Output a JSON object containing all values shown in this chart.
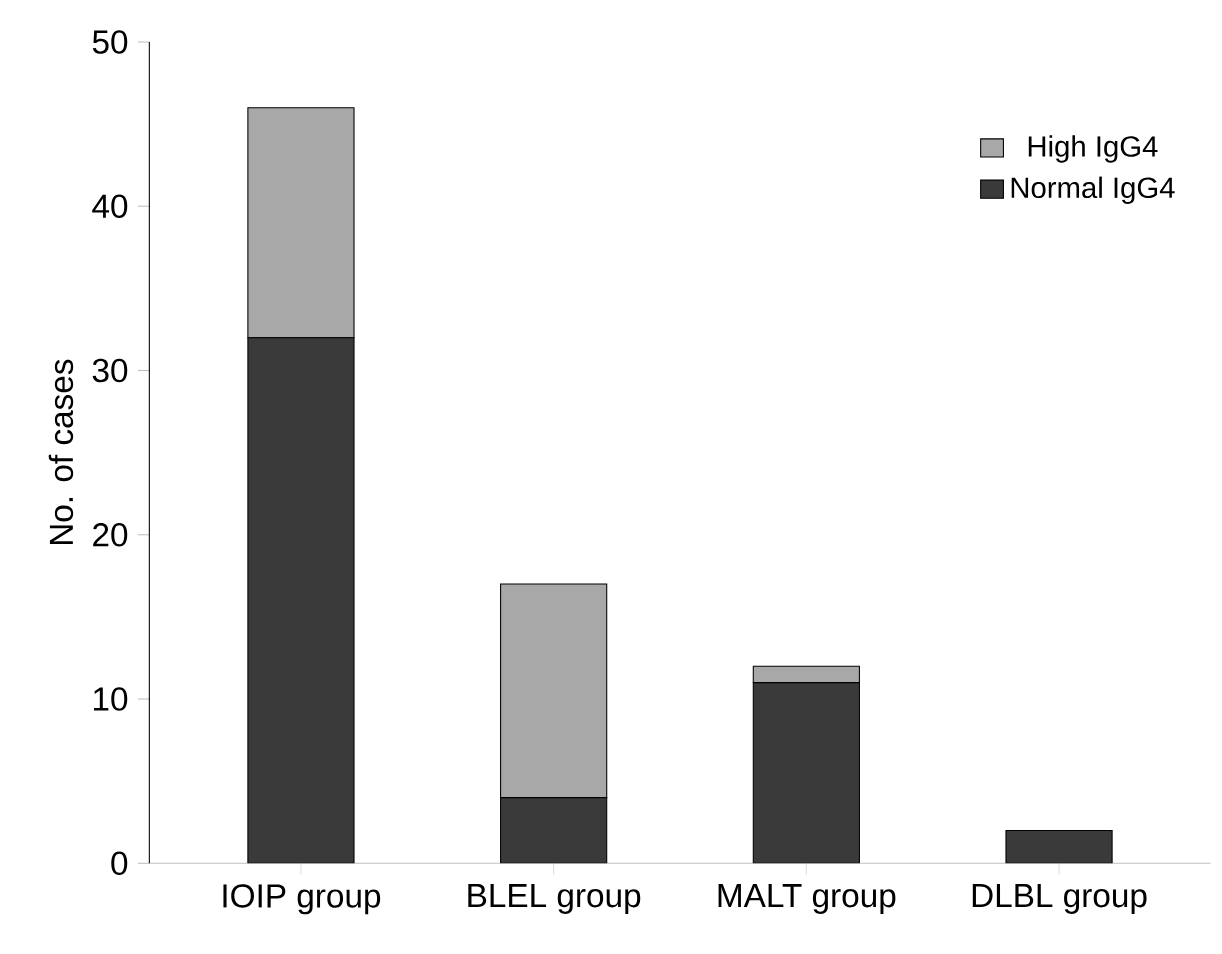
{
  "chart_data": {
    "type": "bar",
    "stacked": true,
    "ylabel": "No. of cases",
    "categories": [
      "IOIP group",
      "BLEL group",
      "MALT group",
      "DLBL group"
    ],
    "series": [
      {
        "name": "Normal IgG4",
        "color": "#3a3a3a",
        "values": [
          32,
          4,
          11,
          2
        ]
      },
      {
        "name": "High IgG4",
        "color": "#a8a8a8",
        "values": [
          14,
          13,
          1,
          0
        ]
      }
    ],
    "ylim": [
      0,
      50
    ],
    "yticks": [
      0,
      10,
      20,
      30,
      40,
      50
    ],
    "legend": "top right"
  }
}
